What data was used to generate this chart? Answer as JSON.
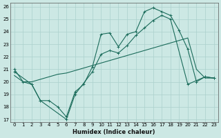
{
  "xlabel": "Humidex (Indice chaleur)",
  "ylabel": "",
  "bg_color": "#cce8e4",
  "line_color": "#1a6b5a",
  "grid_color": "#aad0cc",
  "xlim": [
    -0.5,
    23.5
  ],
  "ylim": [
    16.8,
    26.3
  ],
  "xticks": [
    0,
    1,
    2,
    3,
    4,
    5,
    6,
    7,
    8,
    9,
    10,
    11,
    12,
    13,
    14,
    15,
    16,
    17,
    18,
    19,
    20,
    21,
    22,
    23
  ],
  "yticks": [
    17,
    18,
    19,
    20,
    21,
    22,
    23,
    24,
    25,
    26
  ],
  "series1_x": [
    0,
    1,
    2,
    3,
    4,
    5,
    6,
    7,
    8,
    9,
    10,
    11,
    12,
    13,
    14,
    15,
    16,
    17,
    18,
    19,
    20,
    21,
    22,
    23
  ],
  "series1_y": [
    21.0,
    20.0,
    19.8,
    18.5,
    18.5,
    18.0,
    17.2,
    19.2,
    19.8,
    21.2,
    23.8,
    23.9,
    22.8,
    23.8,
    24.0,
    25.6,
    25.9,
    25.6,
    25.3,
    24.1,
    22.6,
    20.0,
    20.4,
    20.3
  ],
  "series1_markers": [
    0,
    1,
    2,
    3,
    4,
    5,
    6,
    7,
    8,
    9,
    10,
    11,
    12,
    13,
    14,
    15,
    16,
    17,
    18,
    19,
    20,
    21,
    22,
    23
  ],
  "series2_x": [
    0,
    2,
    3,
    6,
    7,
    9,
    10,
    11,
    12,
    13,
    14,
    15,
    16,
    17,
    18,
    20,
    22,
    23
  ],
  "series2_y": [
    20.8,
    19.8,
    18.5,
    17.0,
    19.0,
    20.8,
    22.2,
    22.5,
    22.3,
    22.9,
    23.7,
    24.3,
    24.9,
    25.3,
    25.0,
    19.8,
    20.4,
    20.3
  ],
  "series3_x": [
    0,
    1,
    2,
    3,
    4,
    5,
    6,
    7,
    8,
    9,
    10,
    11,
    12,
    13,
    14,
    15,
    16,
    17,
    18,
    19,
    20,
    21,
    22,
    23
  ],
  "series3_y": [
    20.5,
    20.0,
    20.0,
    20.2,
    20.4,
    20.6,
    20.7,
    20.9,
    21.1,
    21.3,
    21.5,
    21.7,
    21.9,
    22.1,
    22.3,
    22.5,
    22.7,
    22.9,
    23.1,
    23.3,
    23.5,
    21.0,
    20.3,
    20.3
  ]
}
